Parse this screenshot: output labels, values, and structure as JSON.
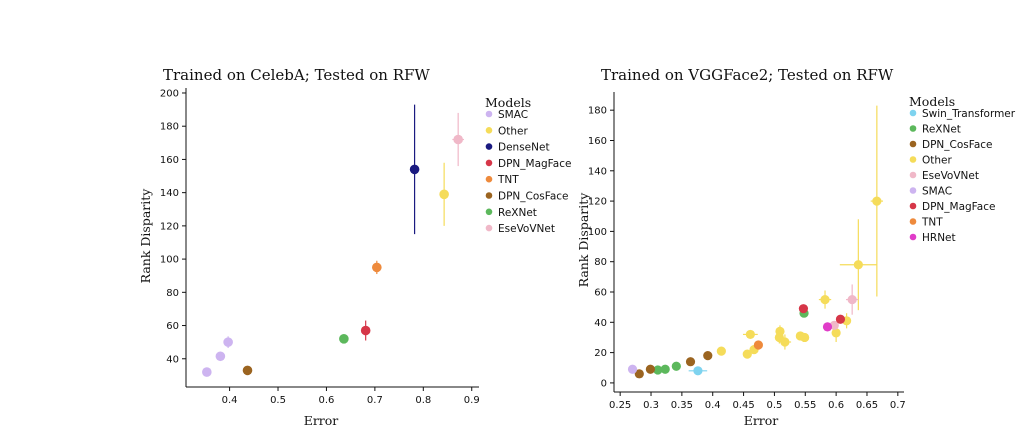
{
  "chart_data": [
    {
      "type": "scatter",
      "title": "Trained on CelebA; Tested on RFW",
      "xlabel": "Error",
      "ylabel": "Rank Disparity",
      "xlim": [
        0.31,
        0.915
      ],
      "ylim": [
        23,
        203
      ],
      "xticks": [
        0.4,
        0.5,
        0.6,
        0.7,
        0.8,
        0.9
      ],
      "yticks": [
        40,
        60,
        80,
        100,
        120,
        140,
        160,
        180,
        200
      ],
      "legend_title": "Models",
      "legend_position": "right",
      "grid": false,
      "series": [
        {
          "name": "SMAC",
          "color": "#cdb4f0",
          "points": [
            {
              "x": 0.353,
              "y": 32,
              "xerr": 0.004,
              "yerr": 1.5
            },
            {
              "x": 0.381,
              "y": 41.5,
              "xerr": 0.004,
              "yerr": 2
            },
            {
              "x": 0.397,
              "y": 50,
              "xerr": 0.004,
              "yerr": 3.5
            }
          ]
        },
        {
          "name": "Other",
          "color": "#f5dc5a",
          "points": [
            {
              "x": 0.843,
              "y": 139,
              "xerr": 0.004,
              "yerr": 19
            }
          ]
        },
        {
          "name": "DenseNet",
          "color": "#1a1a80",
          "points": [
            {
              "x": 0.782,
              "y": 154,
              "xerr": 0.003,
              "yerr": 39
            }
          ]
        },
        {
          "name": "DPN_MagFace",
          "color": "#d63648",
          "points": [
            {
              "x": 0.681,
              "y": 57,
              "xerr": 0.003,
              "yerr": 6
            }
          ]
        },
        {
          "name": "TNT",
          "color": "#ee8a3c",
          "points": [
            {
              "x": 0.704,
              "y": 95,
              "xerr": 0.005,
              "yerr": 4
            }
          ]
        },
        {
          "name": "DPN_CosFace",
          "color": "#9b6420",
          "points": [
            {
              "x": 0.437,
              "y": 33,
              "xerr": 0.004,
              "yerr": 1
            }
          ]
        },
        {
          "name": "ReXNet",
          "color": "#5cb85c",
          "points": [
            {
              "x": 0.636,
              "y": 52,
              "xerr": 0.003,
              "yerr": 1
            }
          ]
        },
        {
          "name": "EseVoVNet",
          "color": "#f0b8c8",
          "points": [
            {
              "x": 0.872,
              "y": 172,
              "xerr": 0.012,
              "yerr": 16
            }
          ]
        }
      ]
    },
    {
      "type": "scatter",
      "title": "Trained on VGGFace2; Tested on RFW",
      "xlabel": "Error",
      "ylabel": "Rank Disparity",
      "xlim": [
        0.24,
        0.71
      ],
      "ylim": [
        -6,
        192
      ],
      "xticks": [
        0.25,
        0.3,
        0.35,
        0.4,
        0.45,
        0.5,
        0.55,
        0.6,
        0.65,
        0.7
      ],
      "yticks": [
        0,
        20,
        40,
        60,
        80,
        100,
        120,
        140,
        160,
        180
      ],
      "legend_title": "Models",
      "legend_position": "right",
      "grid": false,
      "series": [
        {
          "name": "Swin_Transformer",
          "color": "#7ed3ef",
          "points": [
            {
              "x": 0.376,
              "y": 8,
              "xerr": 0.015,
              "yerr": 1
            }
          ]
        },
        {
          "name": "ReXNet",
          "color": "#5cb85c",
          "points": [
            {
              "x": 0.311,
              "y": 8.5,
              "xerr": 0.003,
              "yerr": 1
            },
            {
              "x": 0.323,
              "y": 9,
              "xerr": 0.003,
              "yerr": 1
            },
            {
              "x": 0.341,
              "y": 11,
              "xerr": 0.003,
              "yerr": 1
            },
            {
              "x": 0.548,
              "y": 46,
              "xerr": 0.003,
              "yerr": 2
            }
          ]
        },
        {
          "name": "DPN_CosFace",
          "color": "#9b6420",
          "points": [
            {
              "x": 0.281,
              "y": 6,
              "xerr": 0.003,
              "yerr": 1
            },
            {
              "x": 0.299,
              "y": 9,
              "xerr": 0.003,
              "yerr": 1
            },
            {
              "x": 0.364,
              "y": 14,
              "xerr": 0.003,
              "yerr": 1
            },
            {
              "x": 0.392,
              "y": 18,
              "xerr": 0.003,
              "yerr": 1.5
            }
          ]
        },
        {
          "name": "Other",
          "color": "#f5dc5a",
          "points": [
            {
              "x": 0.414,
              "y": 21,
              "xerr": 0.005,
              "yerr": 2
            },
            {
              "x": 0.456,
              "y": 19,
              "xerr": 0.005,
              "yerr": 2
            },
            {
              "x": 0.461,
              "y": 32,
              "xerr": 0.012,
              "yerr": 2
            },
            {
              "x": 0.467,
              "y": 22,
              "xerr": 0.004,
              "yerr": 3
            },
            {
              "x": 0.508,
              "y": 30,
              "xerr": 0.004,
              "yerr": 4
            },
            {
              "x": 0.509,
              "y": 34,
              "xerr": 0.004,
              "yerr": 4
            },
            {
              "x": 0.517,
              "y": 27,
              "xerr": 0.01,
              "yerr": 5
            },
            {
              "x": 0.542,
              "y": 31,
              "xerr": 0.005,
              "yerr": 2
            },
            {
              "x": 0.549,
              "y": 30,
              "xerr": 0.005,
              "yerr": 2
            },
            {
              "x": 0.582,
              "y": 55,
              "xerr": 0.01,
              "yerr": 6
            },
            {
              "x": 0.6,
              "y": 33,
              "xerr": 0.006,
              "yerr": 6
            },
            {
              "x": 0.617,
              "y": 41,
              "xerr": 0.006,
              "yerr": 5
            },
            {
              "x": 0.636,
              "y": 78,
              "xerr": 0.03,
              "yerr": 30
            },
            {
              "x": 0.666,
              "y": 120,
              "xerr": 0.01,
              "yerr": 63
            }
          ]
        },
        {
          "name": "EseVoVNet",
          "color": "#f0b8c8",
          "points": [
            {
              "x": 0.597,
              "y": 38,
              "xerr": 0.006,
              "yerr": 2
            },
            {
              "x": 0.626,
              "y": 55,
              "xerr": 0.01,
              "yerr": 10
            }
          ]
        },
        {
          "name": "SMAC",
          "color": "#cdb4f0",
          "points": [
            {
              "x": 0.27,
              "y": 9,
              "xerr": 0.003,
              "yerr": 1
            }
          ]
        },
        {
          "name": "DPN_MagFace",
          "color": "#d63648",
          "points": [
            {
              "x": 0.547,
              "y": 49,
              "xerr": 0.003,
              "yerr": 2
            },
            {
              "x": 0.607,
              "y": 42,
              "xerr": 0.004,
              "yerr": 1.5
            }
          ]
        },
        {
          "name": "TNT",
          "color": "#ee8a3c",
          "points": [
            {
              "x": 0.474,
              "y": 25,
              "xerr": 0.004,
              "yerr": 2
            }
          ]
        },
        {
          "name": "HRNet",
          "color": "#e03cc8",
          "points": [
            {
              "x": 0.586,
              "y": 37,
              "xerr": 0.004,
              "yerr": 1.5
            }
          ]
        }
      ]
    }
  ]
}
